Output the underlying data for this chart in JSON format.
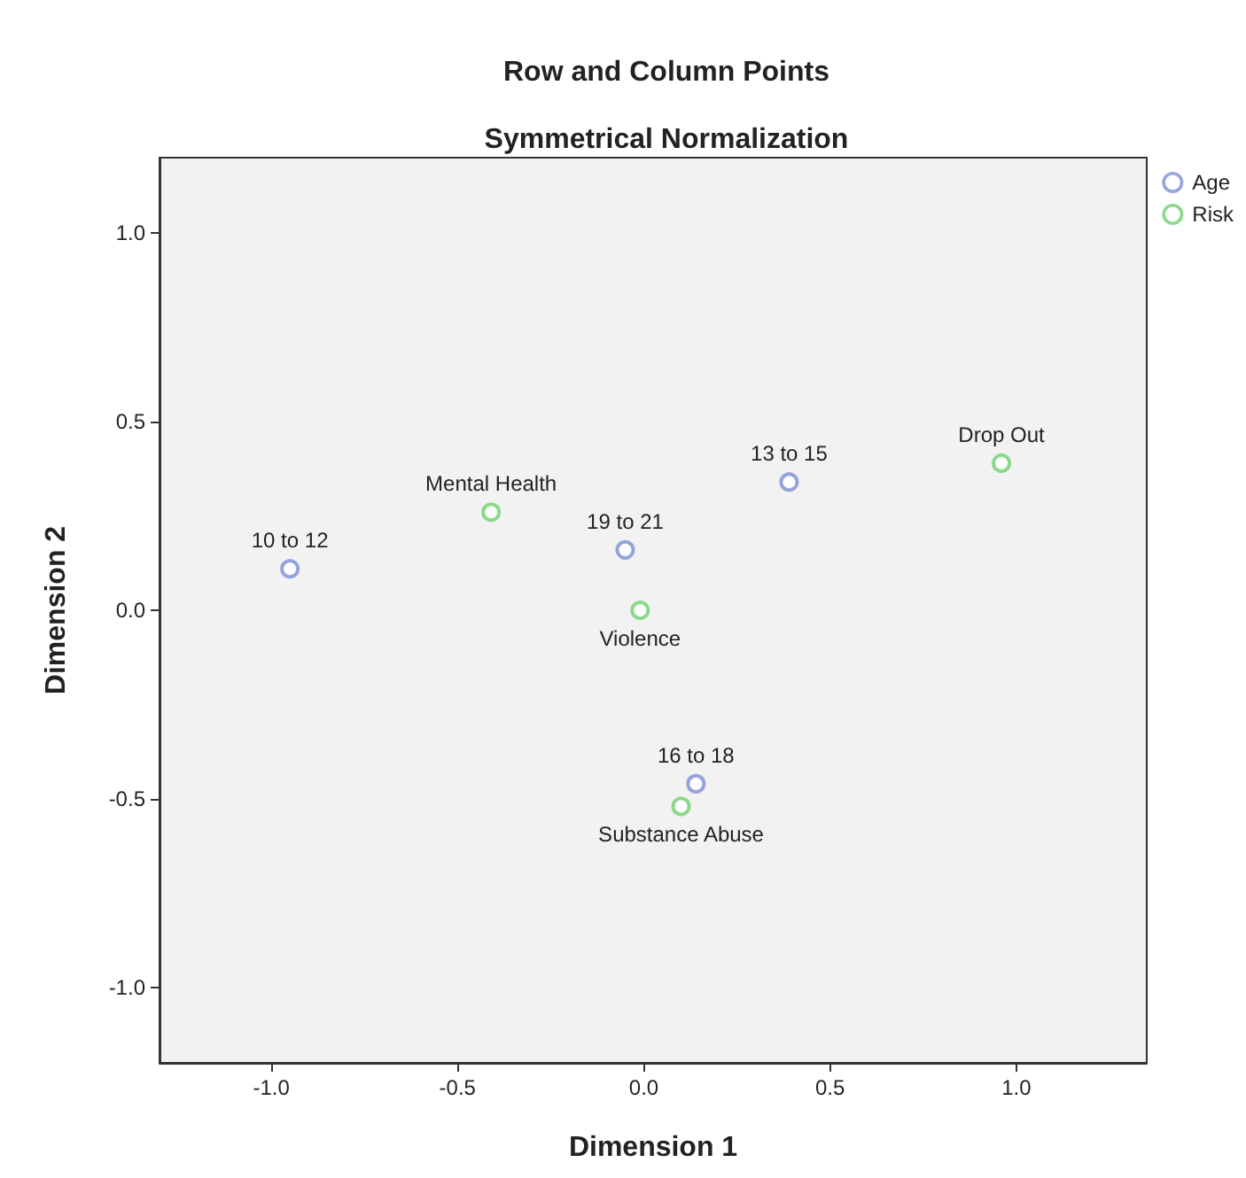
{
  "chart_data": {
    "type": "scatter",
    "title": "Row and Column Points",
    "subtitle": "Symmetrical Normalization",
    "xlabel": "Dimension 1",
    "ylabel": "Dimension 2",
    "series": [
      {
        "name": "Age",
        "color": "#7b8fd4",
        "x": [
          -0.95,
          0.39,
          0.14,
          -0.05
        ],
        "values": [
          0.11,
          0.34,
          -0.46,
          0.16
        ]
      },
      {
        "name": "Risk",
        "color": "#6fcf6f",
        "x": [
          -0.41,
          0.96,
          -0.01,
          0.1
        ],
        "values": [
          0.26,
          0.39,
          0.0,
          -0.52
        ]
      }
    ],
    "annotations": [
      {
        "text": "10 to 12",
        "x": -0.95,
        "y": 0.11
      },
      {
        "text": "13 to 15",
        "x": 0.39,
        "y": 0.34
      },
      {
        "text": "16 to 18",
        "x": 0.14,
        "y": -0.46
      },
      {
        "text": "19 to 21",
        "x": -0.05,
        "y": 0.16
      },
      {
        "text": "Mental Health",
        "x": -0.41,
        "y": 0.26
      },
      {
        "text": "Drop Out",
        "x": 0.96,
        "y": 0.39
      },
      {
        "text": "Violence",
        "x": -0.01,
        "y": 0.0
      },
      {
        "text": "Substance Abuse",
        "x": 0.1,
        "y": -0.52
      }
    ],
    "xlim": [
      -1.3,
      1.35
    ],
    "ylim": [
      -1.2,
      1.2
    ],
    "xticks": [
      {
        "value": -1,
        "label": "-1.0"
      },
      {
        "value": -0.5,
        "label": "-0.5"
      },
      {
        "value": 0,
        "label": "0.0"
      },
      {
        "value": 0.5,
        "label": "0.5"
      },
      {
        "value": 1,
        "label": "1.0"
      }
    ],
    "yticks": [
      {
        "value": -1,
        "label": "-1.0"
      },
      {
        "value": -0.5,
        "label": "-0.5"
      },
      {
        "value": 0,
        "label": "0.0"
      },
      {
        "value": 0.5,
        "label": "0.5"
      },
      {
        "value": 1,
        "label": "1.0"
      }
    ],
    "grid": false,
    "legend": "top right",
    "marker": "circle"
  }
}
